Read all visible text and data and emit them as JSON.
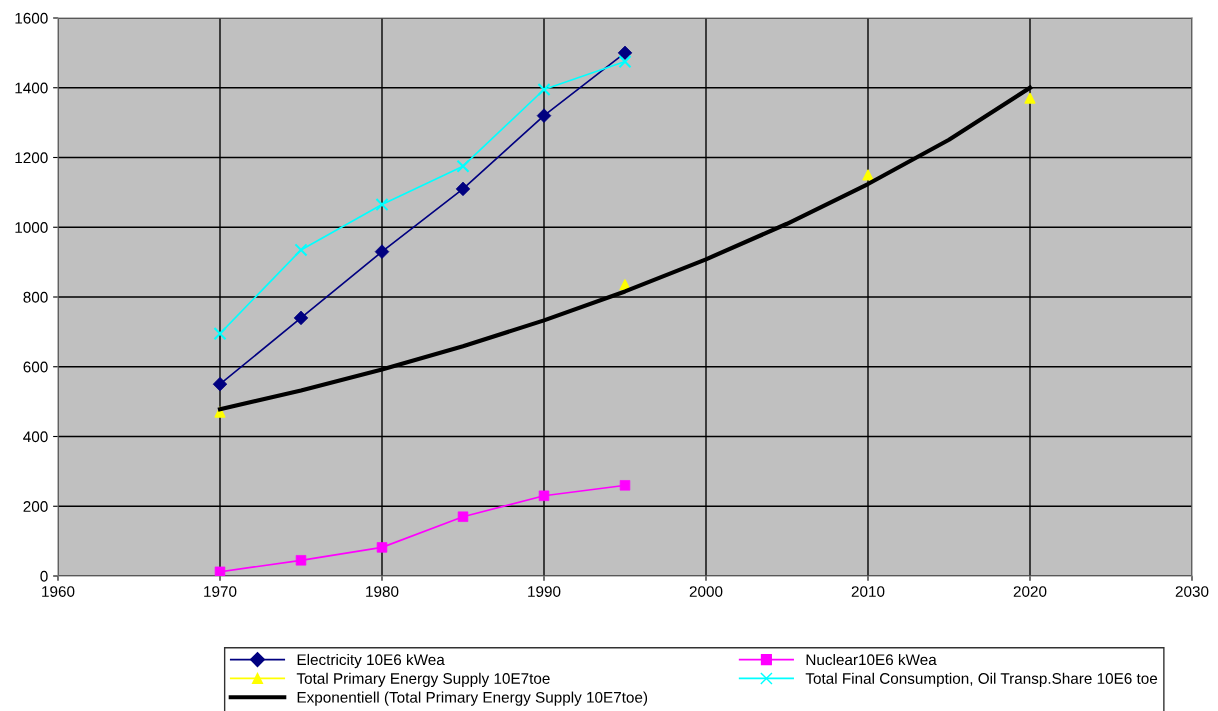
{
  "chart_data": {
    "type": "line",
    "xlim": [
      1960,
      2030
    ],
    "xticks": [
      1960,
      1970,
      1980,
      1990,
      2000,
      2010,
      2020,
      2030
    ],
    "ylim": [
      0,
      1600
    ],
    "yticks": [
      0,
      200,
      400,
      600,
      800,
      1000,
      1200,
      1400,
      1600
    ],
    "grid": true,
    "legend": "bottom",
    "line_style": "solid",
    "series": [
      {
        "name": "Electricity 10E6 kWea",
        "color": "#000080",
        "marker": "diamond",
        "x": [
          1970,
          1975,
          1980,
          1985,
          1990,
          1995
        ],
        "values": [
          550,
          740,
          930,
          1110,
          1320,
          1500
        ]
      },
      {
        "name": "Nuclear10E6 kWea",
        "color": "#ff00ff",
        "marker": "square",
        "x": [
          1970,
          1975,
          1980,
          1985,
          1990,
          1995
        ],
        "values": [
          12,
          45,
          82,
          170,
          230,
          260
        ]
      },
      {
        "name": "Total Primary Energy Supply 10E7toe",
        "color": "#ffff00",
        "marker": "triangle",
        "type": "scatter",
        "x": [
          1970,
          1995,
          2010,
          2020
        ],
        "values": [
          470,
          835,
          1150,
          1370
        ]
      },
      {
        "name": "Total Final Consumption, Oil Transp.Share 10E6 toe",
        "color": "#00ffff",
        "marker": "cross",
        "x": [
          1970,
          1975,
          1980,
          1985,
          1990,
          1995
        ],
        "values": [
          695,
          935,
          1065,
          1175,
          1395,
          1475
        ]
      },
      {
        "name": "Exponentiell (Total Primary Energy Supply 10E7toe)",
        "color": "#000000",
        "marker": "none",
        "x": [
          1970,
          1975,
          1980,
          1985,
          1990,
          1995,
          2000,
          2005,
          2010,
          2015,
          2020
        ],
        "values": [
          478,
          532,
          592,
          659,
          733,
          816,
          908,
          1010,
          1124,
          1251,
          1400
        ]
      }
    ]
  }
}
